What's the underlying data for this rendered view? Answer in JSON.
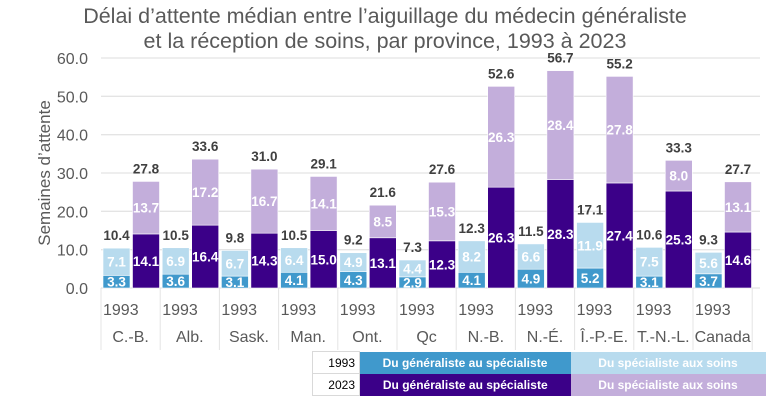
{
  "chart_data": {
    "type": "bar",
    "stacked": true,
    "title": [
      "Délai d’attente médian entre l’aiguillage du médecin généraliste",
      "et la réception de soins, par province, 1993 à 2023"
    ],
    "xlabel": "",
    "ylabel": "Semaines d’attente",
    "ylim": [
      0,
      60
    ],
    "yticks": [
      "0.0",
      "10.0",
      "20.0",
      "30.0",
      "40.0",
      "50.0",
      "60.0"
    ],
    "grid": true,
    "categories": [
      "C.-B.",
      "Alb.",
      "Sask.",
      "Man.",
      "Ont.",
      "Qc",
      "N.-B.",
      "N.-É.",
      "Î.-P.-E.",
      "T.-N.-L.",
      "Canada"
    ],
    "sub_category_label": "1993",
    "series": [
      {
        "name": "1993 Du généraliste au spécialiste",
        "year": "1993",
        "color": "#4099cc",
        "values": [
          3.3,
          3.6,
          3.1,
          4.1,
          4.3,
          2.9,
          4.1,
          4.9,
          5.2,
          3.1,
          3.7
        ]
      },
      {
        "name": "1993 Du spécialiste aux soins",
        "year": "1993",
        "color": "#b8dbee",
        "values": [
          7.1,
          6.9,
          6.7,
          6.4,
          4.9,
          4.4,
          8.2,
          6.6,
          11.9,
          7.5,
          5.6
        ]
      },
      {
        "name": "2023 Du généraliste au spécialiste",
        "year": "2023",
        "color": "#3b0088",
        "values": [
          14.1,
          16.4,
          14.3,
          15.0,
          13.1,
          12.3,
          26.3,
          28.3,
          27.4,
          25.3,
          14.6
        ]
      },
      {
        "name": "2023 Du spécialiste aux soins",
        "year": "2023",
        "color": "#c3aedb",
        "values": [
          13.7,
          17.2,
          16.7,
          14.1,
          8.5,
          15.3,
          26.3,
          28.4,
          27.8,
          8.0,
          13.1
        ]
      }
    ],
    "totals": {
      "1993": [
        10.4,
        10.5,
        9.8,
        10.5,
        9.2,
        7.3,
        12.3,
        11.5,
        17.1,
        10.6,
        9.3
      ],
      "2023": [
        27.8,
        33.6,
        31.0,
        29.1,
        21.6,
        27.6,
        52.6,
        56.7,
        55.2,
        33.3,
        27.7
      ]
    },
    "legend": {
      "placement": "bottom-right",
      "rows": [
        {
          "year": "1993",
          "first": "Du généraliste au spécialiste",
          "second": "Du spécialiste aux soins"
        },
        {
          "year": "2023",
          "first": "Du généraliste au spécialiste",
          "second": "Du spécialiste aux soins"
        }
      ]
    }
  },
  "colors": {
    "c1993_a": "#4099cc",
    "c1993_b": "#b8dbee",
    "c2023_a": "#3b0088",
    "c2023_b": "#c3aedb"
  }
}
